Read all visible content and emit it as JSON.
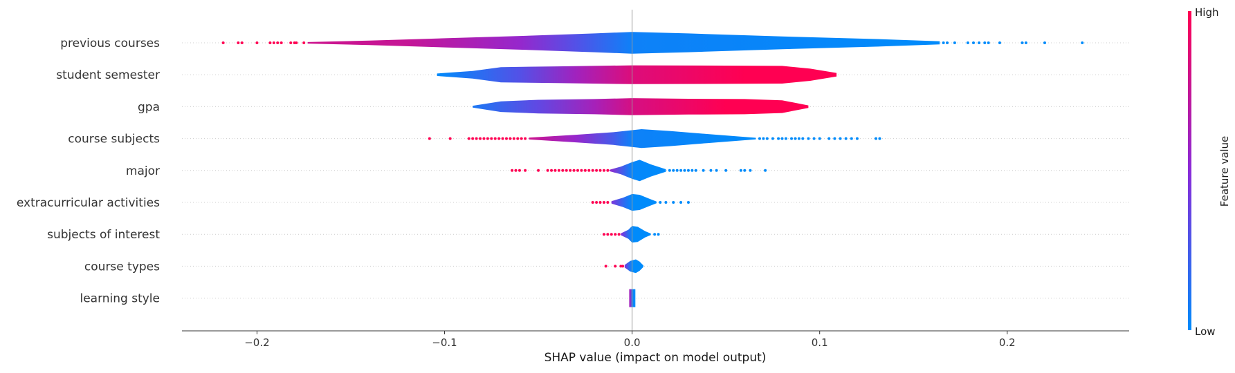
{
  "chart_data": {
    "type": "violin",
    "xlabel": "SHAP value (impact on model output)",
    "xlim": [
      -0.24,
      0.265
    ],
    "xticks": [
      -0.2,
      -0.1,
      0.0,
      0.1,
      0.2
    ],
    "xtick_labels": [
      "−0.2",
      "−0.1",
      "0.0",
      "0.1",
      "0.2"
    ],
    "colorbar": {
      "label": "Feature value",
      "high_label": "High",
      "low_label": "Low",
      "low_color": "#008bfb",
      "high_color": "#ff0052"
    },
    "features": [
      {
        "name": "previous courses",
        "body_min": -0.173,
        "body_max": 0.164,
        "profile": [
          [
            -0.173,
            0.05
          ],
          [
            -0.14,
            0.15
          ],
          [
            -0.1,
            0.3
          ],
          [
            -0.06,
            0.45
          ],
          [
            -0.02,
            0.62
          ],
          [
            0.0,
            0.72
          ],
          [
            0.03,
            0.62
          ],
          [
            0.08,
            0.42
          ],
          [
            0.13,
            0.25
          ],
          [
            0.164,
            0.1
          ]
        ],
        "colors": [
          [
            -0.173,
            0.78
          ],
          [
            -0.12,
            0.75
          ],
          [
            -0.06,
            0.55
          ],
          [
            -0.03,
            0.3
          ],
          [
            0.0,
            0.05
          ],
          [
            0.164,
            0.0
          ]
        ],
        "low_outliers": [
          -0.218,
          -0.21,
          -0.208,
          -0.2,
          -0.193,
          -0.191,
          -0.189,
          -0.187,
          -0.182,
          -0.18,
          -0.179,
          -0.175
        ],
        "high_outliers": [
          0.166,
          0.168,
          0.172,
          0.179,
          0.182,
          0.185,
          0.188,
          0.19,
          0.196,
          0.208,
          0.21,
          0.22,
          0.24
        ]
      },
      {
        "name": "student semester",
        "body_min": -0.104,
        "body_max": 0.109,
        "profile": [
          [
            -0.104,
            0.08
          ],
          [
            -0.085,
            0.25
          ],
          [
            -0.07,
            0.5
          ],
          [
            -0.04,
            0.55
          ],
          [
            0.0,
            0.62
          ],
          [
            0.05,
            0.6
          ],
          [
            0.08,
            0.58
          ],
          [
            0.095,
            0.4
          ],
          [
            0.109,
            0.12
          ]
        ],
        "colors": [
          [
            -0.104,
            0.0
          ],
          [
            -0.06,
            0.3
          ],
          [
            -0.03,
            0.6
          ],
          [
            0.0,
            0.85
          ],
          [
            0.06,
            1.0
          ],
          [
            0.109,
            1.0
          ]
        ],
        "low_outliers": [],
        "high_outliers": []
      },
      {
        "name": "gpa",
        "body_min": -0.085,
        "body_max": 0.094,
        "profile": [
          [
            -0.085,
            0.06
          ],
          [
            -0.07,
            0.35
          ],
          [
            -0.05,
            0.45
          ],
          [
            -0.02,
            0.5
          ],
          [
            0.0,
            0.56
          ],
          [
            0.03,
            0.52
          ],
          [
            0.06,
            0.5
          ],
          [
            0.08,
            0.42
          ],
          [
            0.094,
            0.08
          ]
        ],
        "colors": [
          [
            -0.085,
            0.1
          ],
          [
            -0.05,
            0.35
          ],
          [
            -0.02,
            0.62
          ],
          [
            0.0,
            0.82
          ],
          [
            0.05,
            1.0
          ],
          [
            0.094,
            1.0
          ]
        ],
        "low_outliers": [],
        "high_outliers": []
      },
      {
        "name": "course subjects",
        "body_min": -0.055,
        "body_max": 0.066,
        "profile": [
          [
            -0.055,
            0.06
          ],
          [
            -0.03,
            0.25
          ],
          [
            -0.01,
            0.42
          ],
          [
            0.005,
            0.62
          ],
          [
            0.02,
            0.5
          ],
          [
            0.04,
            0.3
          ],
          [
            0.066,
            0.05
          ]
        ],
        "colors": [
          [
            -0.055,
            0.78
          ],
          [
            -0.03,
            0.55
          ],
          [
            -0.01,
            0.25
          ],
          [
            0.0,
            0.05
          ],
          [
            0.066,
            0.0
          ]
        ],
        "low_outliers": [
          -0.108,
          -0.097,
          -0.087,
          -0.085,
          -0.083,
          -0.081,
          -0.079,
          -0.077,
          -0.075,
          -0.073,
          -0.071,
          -0.069,
          -0.067,
          -0.065,
          -0.063,
          -0.061,
          -0.059,
          -0.057
        ],
        "high_outliers": [
          0.068,
          0.07,
          0.072,
          0.075,
          0.078,
          0.08,
          0.082,
          0.085,
          0.087,
          0.089,
          0.091,
          0.094,
          0.097,
          0.1,
          0.105,
          0.108,
          0.111,
          0.114,
          0.117,
          0.12,
          0.13,
          0.132
        ]
      },
      {
        "name": "major",
        "body_min": -0.012,
        "body_max": 0.018,
        "profile": [
          [
            -0.012,
            0.05
          ],
          [
            -0.006,
            0.25
          ],
          [
            0.0,
            0.55
          ],
          [
            0.004,
            0.7
          ],
          [
            0.01,
            0.4
          ],
          [
            0.018,
            0.08
          ]
        ],
        "colors": [
          [
            -0.012,
            0.55
          ],
          [
            -0.004,
            0.2
          ],
          [
            0.0,
            0.02
          ],
          [
            0.018,
            0.0
          ]
        ],
        "low_outliers": [
          -0.064,
          -0.062,
          -0.06,
          -0.057,
          -0.05,
          -0.045,
          -0.043,
          -0.041,
          -0.039,
          -0.037,
          -0.035,
          -0.033,
          -0.031,
          -0.029,
          -0.027,
          -0.025,
          -0.023,
          -0.021,
          -0.019,
          -0.017,
          -0.015,
          -0.013
        ],
        "high_outliers": [
          0.02,
          0.022,
          0.024,
          0.026,
          0.028,
          0.03,
          0.032,
          0.034,
          0.038,
          0.042,
          0.045,
          0.05,
          0.058,
          0.06,
          0.063,
          0.071
        ]
      },
      {
        "name": "extracurricular activities",
        "body_min": -0.011,
        "body_max": 0.013,
        "profile": [
          [
            -0.011,
            0.08
          ],
          [
            -0.005,
            0.3
          ],
          [
            0.0,
            0.55
          ],
          [
            0.004,
            0.5
          ],
          [
            0.009,
            0.25
          ],
          [
            0.013,
            0.06
          ]
        ],
        "colors": [
          [
            -0.011,
            0.45
          ],
          [
            -0.004,
            0.15
          ],
          [
            0.0,
            0.0
          ],
          [
            0.013,
            0.0
          ]
        ],
        "low_outliers": [
          -0.021,
          -0.019,
          -0.017,
          -0.015,
          -0.013
        ],
        "high_outliers": [
          0.015,
          0.018,
          0.022,
          0.026,
          0.03
        ]
      },
      {
        "name": "subjects of interest",
        "body_min": -0.006,
        "body_max": 0.01,
        "profile": [
          [
            -0.006,
            0.06
          ],
          [
            -0.002,
            0.3
          ],
          [
            0.0,
            0.55
          ],
          [
            0.003,
            0.5
          ],
          [
            0.007,
            0.2
          ],
          [
            0.01,
            0.05
          ]
        ],
        "colors": [
          [
            -0.006,
            0.5
          ],
          [
            -0.002,
            0.15
          ],
          [
            0.0,
            0.0
          ],
          [
            0.01,
            0.0
          ]
        ],
        "low_outliers": [
          -0.015,
          -0.013,
          -0.011,
          -0.009,
          -0.007
        ],
        "high_outliers": [
          0.012,
          0.014
        ]
      },
      {
        "name": "course types",
        "body_min": -0.004,
        "body_max": 0.006,
        "profile": [
          [
            -0.004,
            0.08
          ],
          [
            -0.001,
            0.35
          ],
          [
            0.002,
            0.45
          ],
          [
            0.004,
            0.3
          ],
          [
            0.006,
            0.05
          ]
        ],
        "colors": [
          [
            -0.004,
            0.45
          ],
          [
            -0.001,
            0.1
          ],
          [
            0.0,
            0.0
          ],
          [
            0.006,
            0.0
          ]
        ],
        "low_outliers": [
          -0.014,
          -0.009,
          -0.006,
          -0.005
        ],
        "high_outliers": []
      },
      {
        "name": "learning style",
        "body_min": -0.001,
        "body_max": 0.001,
        "profile": [
          [
            -0.001,
            0.55
          ],
          [
            0.001,
            0.55
          ]
        ],
        "colors": [
          [
            -0.001,
            0.6
          ],
          [
            0.0,
            0.1
          ],
          [
            0.001,
            0.0
          ]
        ],
        "low_outliers": [],
        "high_outliers": []
      }
    ]
  }
}
